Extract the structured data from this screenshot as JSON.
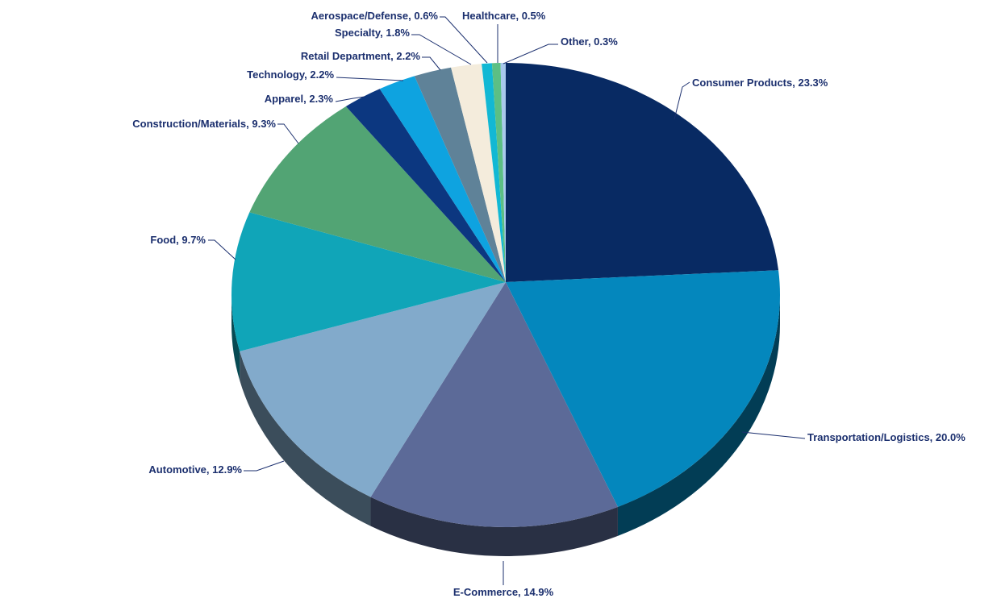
{
  "chart_data": {
    "type": "pie",
    "style": "3d",
    "title": "",
    "unit": "%",
    "legend": "none (data labels with leader lines)",
    "slices": [
      {
        "label": "Consumer Products",
        "value": 23.3,
        "color": "#082a63"
      },
      {
        "label": "Transportation/Logistics",
        "value": 20.0,
        "color": "#0487bd"
      },
      {
        "label": "E-Commerce",
        "value": 14.9,
        "color": "#5c6a98"
      },
      {
        "label": "Automotive",
        "value": 12.9,
        "color": "#82aacb"
      },
      {
        "label": "Food",
        "value": 9.7,
        "color": "#10a5b8"
      },
      {
        "label": "Construction/Materials",
        "value": 9.3,
        "color": "#52a474"
      },
      {
        "label": "Apparel",
        "value": 2.3,
        "color": "#0c3780"
      },
      {
        "label": "Technology",
        "value": 2.2,
        "color": "#0ea3e0"
      },
      {
        "label": "Retail Department",
        "value": 2.2,
        "color": "#5f8298"
      },
      {
        "label": "Specialty",
        "value": 1.8,
        "color": "#f4ecdc"
      },
      {
        "label": "Aerospace/Defense",
        "value": 0.6,
        "color": "#12b8d4"
      },
      {
        "label": "Healthcare",
        "value": 0.5,
        "color": "#5cbf84"
      },
      {
        "label": "Other",
        "value": 0.3,
        "color": "#a8c8ec"
      }
    ]
  }
}
